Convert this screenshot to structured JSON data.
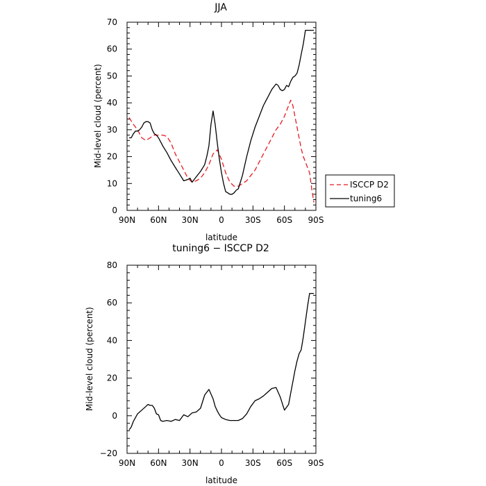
{
  "chart_data": [
    {
      "type": "line",
      "title": "JJA",
      "xlabel": "latitude",
      "ylabel": "Mid-level cloud (percent)",
      "xlim": [
        90,
        -90
      ],
      "ylim": [
        0,
        70
      ],
      "xticks": [
        90,
        60,
        30,
        0,
        -30,
        -60,
        -90
      ],
      "xtick_labels": [
        "90N",
        "60N",
        "30N",
        "0",
        "30S",
        "60S",
        "90S"
      ],
      "yticks": [
        0,
        10,
        20,
        30,
        40,
        50,
        60,
        70
      ],
      "ytick_labels": [
        "0",
        "10",
        "20",
        "30",
        "40",
        "50",
        "60",
        "70"
      ],
      "legend": {
        "placement": "outside-right",
        "entries": [
          "ISCCP D2",
          "tuning6"
        ]
      },
      "series": [
        {
          "name": "ISCCP D2",
          "color": "#e8181e",
          "dash": "dashed",
          "x": [
            88,
            84,
            80,
            76,
            72,
            68,
            64,
            60,
            56,
            52,
            48,
            44,
            40,
            36,
            32,
            28,
            24,
            20,
            16,
            12,
            8,
            4,
            0,
            -4,
            -8,
            -12,
            -16,
            -20,
            -24,
            -28,
            -32,
            -36,
            -40,
            -44,
            -48,
            -52,
            -56,
            -60,
            -62,
            -64,
            -66,
            -68,
            -70,
            -72,
            -74,
            -76,
            -78,
            -80,
            -82,
            -84,
            -86,
            -88
          ],
          "y": [
            34.5,
            32,
            30,
            27,
            26,
            27,
            28,
            28,
            28,
            27.5,
            25,
            21,
            18,
            15,
            12,
            10.5,
            11,
            12,
            14,
            17,
            21,
            22.5,
            19,
            14,
            10.5,
            9,
            9,
            10,
            11,
            13,
            15,
            18,
            21,
            24,
            27,
            30,
            32,
            35,
            37,
            39,
            41,
            39,
            35,
            31,
            27,
            23,
            20,
            18,
            16,
            14,
            8,
            3
          ]
        },
        {
          "name": "tuning6",
          "color": "#000000",
          "dash": "solid",
          "x": [
            88,
            86,
            84,
            82,
            80,
            78,
            76,
            74,
            72,
            70,
            68,
            66,
            64,
            62,
            60,
            58,
            56,
            52,
            48,
            44,
            40,
            36,
            32,
            30,
            28,
            26,
            24,
            20,
            16,
            14,
            12,
            10,
            8,
            6,
            4,
            2,
            0,
            -2,
            -4,
            -6,
            -8,
            -10,
            -12,
            -14,
            -16,
            -20,
            -24,
            -28,
            -32,
            -36,
            -40,
            -44,
            -48,
            -52,
            -54,
            -56,
            -58,
            -60,
            -62,
            -64,
            -66,
            -68,
            -70,
            -72,
            -74,
            -76,
            -78,
            -80,
            -82,
            -84,
            -86,
            -88
          ],
          "y": [
            27,
            27,
            28.5,
            29.5,
            29.5,
            30,
            31,
            32.5,
            33,
            33,
            32.5,
            30,
            28.5,
            28,
            27,
            25.5,
            24,
            21.5,
            18.5,
            16,
            13.5,
            11,
            11.5,
            12,
            10.5,
            11.5,
            12.5,
            14.5,
            17,
            20,
            24,
            32,
            37,
            32,
            25,
            19,
            14,
            10,
            7,
            6.5,
            6,
            6,
            6.5,
            7.5,
            8,
            13,
            20,
            26,
            31,
            35,
            39,
            42,
            45,
            47,
            46.5,
            45,
            44.5,
            45,
            46.5,
            46,
            48,
            49.5,
            50,
            51,
            54,
            58,
            62,
            67,
            67,
            67,
            67,
            67
          ]
        }
      ]
    },
    {
      "type": "line",
      "title": "tuning6 − ISCCP D2",
      "xlabel": "latitude",
      "ylabel": "Mid-level cloud (percent)",
      "xlim": [
        90,
        -90
      ],
      "ylim": [
        -20,
        80
      ],
      "xticks": [
        90,
        60,
        30,
        0,
        -30,
        -60,
        -90
      ],
      "xtick_labels": [
        "90N",
        "60N",
        "30N",
        "0",
        "30S",
        "60S",
        "90S"
      ],
      "yticks": [
        -20,
        0,
        20,
        40,
        60,
        80
      ],
      "ytick_labels": [
        "−20",
        "0",
        "20",
        "40",
        "60",
        "80"
      ],
      "series": [
        {
          "color": "#000000",
          "dash": "solid",
          "x": [
            88,
            86,
            84,
            80,
            76,
            72,
            70,
            68,
            66,
            64,
            62,
            60,
            58,
            56,
            52,
            48,
            44,
            40,
            36,
            32,
            30,
            28,
            24,
            20,
            16,
            12,
            8,
            6,
            4,
            2,
            0,
            -4,
            -8,
            -12,
            -16,
            -20,
            -24,
            -28,
            -32,
            -36,
            -40,
            -44,
            -48,
            -52,
            -56,
            -60,
            -64,
            -66,
            -68,
            -70,
            -72,
            -74,
            -76,
            -78,
            -80,
            -82,
            -84,
            -86,
            -88
          ],
          "y": [
            -7.5,
            -6,
            -3,
            1,
            3,
            5,
            6,
            5.5,
            5.5,
            4,
            1,
            0.5,
            -2.5,
            -3,
            -2.5,
            -3,
            -2,
            -2.5,
            0.5,
            -0.5,
            0.5,
            1.5,
            2,
            4,
            11,
            14,
            9,
            5,
            2.5,
            0.5,
            -1,
            -2,
            -2.5,
            -2.5,
            -2.5,
            -1.5,
            1,
            5,
            8,
            9,
            10.5,
            12.5,
            14.5,
            15,
            10,
            3,
            6,
            12,
            18,
            24,
            29,
            33,
            35,
            42,
            50,
            58,
            65,
            65,
            65
          ]
        }
      ]
    }
  ]
}
